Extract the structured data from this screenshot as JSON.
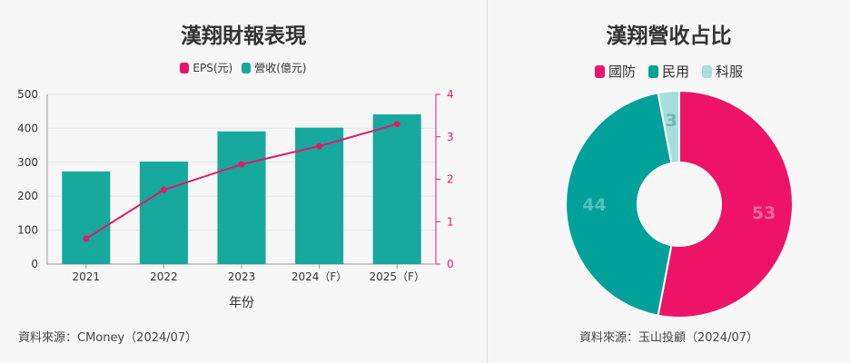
{
  "left_chart": {
    "title": "漢翔財報表現",
    "legend": [
      {
        "label": "EPS(元)",
        "color": "#e8156b"
      },
      {
        "label": "營收(億元)",
        "color": "#17a89e"
      }
    ],
    "source": "資料來源：CMoney（2024/07）"
  },
  "right_chart": {
    "title": "漢翔營收占比",
    "legend": [
      {
        "label": "國防",
        "color": "#ed1468"
      },
      {
        "label": "民用",
        "color": "#00a19a"
      },
      {
        "label": "科服",
        "color": "#a6dedb"
      }
    ],
    "source": "資料來源：玉山投顧（2024/07）"
  },
  "chart_data": [
    {
      "type": "bar",
      "title": "漢翔財報表現",
      "categories": [
        "2021",
        "2022",
        "2023",
        "2024（F）",
        "2025（F）"
      ],
      "xlabel": "年份",
      "series": [
        {
          "name": "營收(億元)",
          "type": "bar",
          "axis": "left",
          "color": "#17a89e",
          "values": [
            273,
            302,
            391,
            402,
            441
          ]
        },
        {
          "name": "EPS(元)",
          "type": "line",
          "axis": "right",
          "color": "#e01a6a",
          "values": [
            0.6,
            1.75,
            2.35,
            2.78,
            3.3
          ]
        }
      ],
      "y_left": {
        "range": [
          0,
          500
        ],
        "ticks": [
          "0",
          "100",
          "200",
          "300",
          "400",
          "500"
        ]
      },
      "y_right": {
        "range": [
          0,
          4
        ],
        "ticks": [
          "0",
          "1",
          "2",
          "3",
          "4"
        ],
        "color": "#e8156b"
      },
      "grid": true,
      "legend_position": "top"
    },
    {
      "type": "pie",
      "title": "漢翔營收占比",
      "donut": true,
      "slices": [
        {
          "label": "國防",
          "value": 53,
          "display": "53",
          "color": "#ed1468",
          "label_color": "#f4699f"
        },
        {
          "label": "民用",
          "value": 44,
          "display": "44",
          "color": "#00a19a",
          "label_color": "#55c1bb"
        },
        {
          "label": "科服",
          "value": 3,
          "display": "3",
          "color": "#a6dedb",
          "label_color": "#6fb8b3"
        }
      ],
      "legend_position": "top"
    }
  ]
}
